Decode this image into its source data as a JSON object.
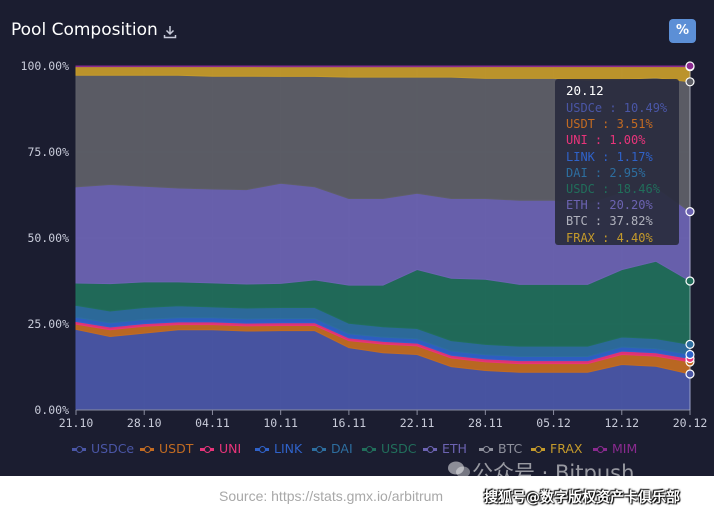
{
  "header": {
    "title": "Pool Composition",
    "percent_button_label": "%",
    "download_icon": "download-icon"
  },
  "colors": {
    "background": "#1b1d30",
    "USDCe": "#4a56a6",
    "USDT": "#c26b22",
    "UNI": "#e8347a",
    "LINK": "#2f62c9",
    "DAI": "#2d6e9f",
    "USDC": "#216e5b",
    "ETH": "#6c63b2",
    "BTC": "#5e5f67",
    "FRAX": "#c49a2b",
    "MIM": "#8a2a8f"
  },
  "chart_data": {
    "type": "area",
    "stacked": true,
    "normalized": true,
    "title": "Pool Composition",
    "xlabel": "",
    "ylabel": "",
    "ylim": [
      0,
      100
    ],
    "y_ticks": [
      "0.00%",
      "25.00%",
      "50.00%",
      "75.00%",
      "100.00%"
    ],
    "x_ticks": [
      "21.10",
      "28.10",
      "04.11",
      "10.11",
      "16.11",
      "22.11",
      "28.11",
      "05.12",
      "12.12",
      "20.12"
    ],
    "grid": true,
    "legend_position": "bottom",
    "x": [
      "21.10",
      "24.10",
      "28.10",
      "01.11",
      "04.11",
      "07.11",
      "10.11",
      "13.11",
      "16.11",
      "19.11",
      "22.11",
      "25.11",
      "28.11",
      "01.12",
      "05.12",
      "08.12",
      "12.12",
      "16.12",
      "20.12"
    ],
    "series": [
      {
        "name": "USDCe",
        "values": [
          23.5,
          21.5,
          22.5,
          23.5,
          23.5,
          23,
          23,
          23,
          18,
          16.5,
          16,
          12.5,
          11.5,
          11,
          11,
          11,
          13.5,
          13,
          10.49
        ]
      },
      {
        "name": "USDT",
        "values": [
          1.5,
          2,
          2,
          1.5,
          1.5,
          1.5,
          1.5,
          1.5,
          2,
          2.5,
          2.5,
          2.5,
          2.5,
          2.5,
          2.5,
          2.5,
          3,
          3,
          3.51
        ]
      },
      {
        "name": "UNI",
        "values": [
          0.8,
          0.8,
          0.8,
          0.8,
          0.8,
          0.8,
          0.8,
          0.8,
          0.8,
          0.8,
          0.8,
          0.8,
          0.9,
          0.9,
          0.9,
          0.9,
          1.0,
          1.0,
          1.0
        ]
      },
      {
        "name": "LINK",
        "values": [
          1.2,
          1.2,
          1.2,
          1.2,
          1.2,
          1.2,
          1.2,
          1.2,
          1.2,
          1.2,
          1.2,
          1.2,
          1.2,
          1.2,
          1.2,
          1.2,
          1.2,
          1.2,
          1.17
        ]
      },
      {
        "name": "DAI",
        "values": [
          3.5,
          3.5,
          3.5,
          3.5,
          3.2,
          3.2,
          3.2,
          3.2,
          3.0,
          3.0,
          3.0,
          3.0,
          3.0,
          3.0,
          3.0,
          3.0,
          3.0,
          3.0,
          2.95
        ]
      },
      {
        "name": "USDC",
        "values": [
          6.5,
          8,
          7.5,
          7,
          7,
          7,
          7,
          8,
          11,
          12,
          17,
          18,
          19,
          18,
          18,
          18,
          20,
          23,
          18.46
        ]
      },
      {
        "name": "ETH",
        "values": [
          28,
          29,
          28,
          27.5,
          27.5,
          27.5,
          29,
          27,
          25,
          25,
          22,
          23,
          23.5,
          24.5,
          24.5,
          23.5,
          23,
          22,
          20.2
        ]
      },
      {
        "name": "BTC",
        "values": [
          32.5,
          32,
          32.5,
          33,
          33,
          33,
          31,
          32,
          35,
          35,
          33.5,
          35,
          35,
          35.5,
          35.5,
          36,
          33.5,
          32.5,
          37.82
        ]
      },
      {
        "name": "FRAX",
        "values": [
          2.5,
          2.5,
          2.5,
          2.5,
          2.8,
          2.8,
          2.8,
          2.8,
          3.0,
          3.0,
          3.0,
          3.0,
          3.4,
          3.4,
          3.4,
          3.9,
          3.8,
          3.3,
          4.4
        ]
      },
      {
        "name": "MIM",
        "values": [
          0.2,
          0.2,
          0.2,
          0.2,
          0.2,
          0.2,
          0.2,
          0.2,
          0.2,
          0.2,
          0.2,
          0.2,
          0.2,
          0.2,
          0.2,
          0.2,
          0.2,
          0.2,
          0.2
        ]
      }
    ],
    "tooltip": {
      "date": "20.12",
      "rows": [
        {
          "label": "USDCe : 10.49%",
          "series": "USDCe"
        },
        {
          "label": "USDT : 3.51%",
          "series": "USDT"
        },
        {
          "label": "UNI : 1.00%",
          "series": "UNI"
        },
        {
          "label": "LINK : 1.17%",
          "series": "LINK"
        },
        {
          "label": "DAI : 2.95%",
          "series": "DAI"
        },
        {
          "label": "USDC : 18.46%",
          "series": "USDC"
        },
        {
          "label": "ETH : 20.20%",
          "series": "ETH"
        },
        {
          "label": "BTC : 37.82%",
          "series": "BTC"
        },
        {
          "label": "FRAX : 4.40%",
          "series": "FRAX"
        }
      ]
    }
  },
  "footer": {
    "watermark": "公众号 · Bitpush",
    "source": "Source: https://stats.gmx.io/arbitrum",
    "sohu_credit": "搜狐号@数字版权资产卡俱乐部"
  }
}
